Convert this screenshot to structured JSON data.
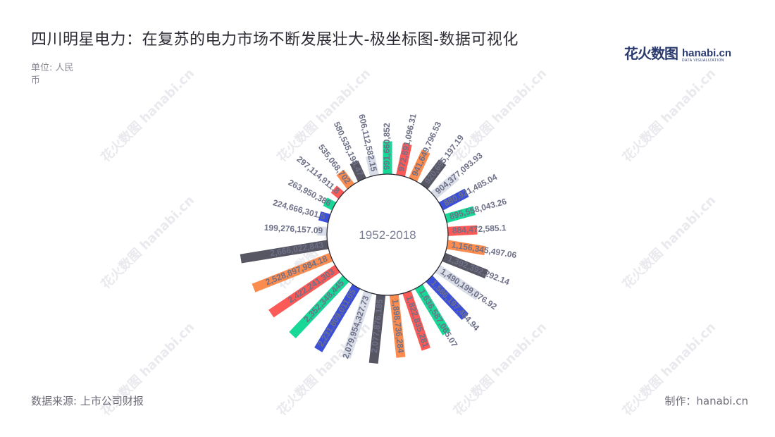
{
  "title": "四川明星电力：在复苏的电力市场不断发展壮大-极坐标图-数据可视化",
  "unit_label": "单位: 人民币",
  "logo": {
    "cn": "花火数图",
    "en": "hanabi.cn",
    "en_sub": "DATA VISUALIZATION"
  },
  "source": "数据来源: 上市公司财报",
  "credit": "制作：hanabi.cn",
  "watermark": "花火数图 hanabi.cn",
  "chart_data": {
    "type": "bar",
    "polar": true,
    "center_label": "1952-2018",
    "values": [
      991660852,
      972891096.31,
      941649796.53,
      920695197.19,
      904377093.93,
      880921485.04,
      895558043.26,
      884472585.1,
      1156345497.06,
      1392392292.14,
      1490199076.92,
      1586197484.94,
      1636587065.07,
      1822835281,
      1898736284,
      2077876185,
      2079954327.73,
      2231809011.05,
      2352348445,
      2422241303,
      2528897984.18,
      2666022843,
      199276157.09,
      224666301.5,
      263950386,
      297114911.8,
      535068702,
      580535198.47,
      606112582.15
    ],
    "labels": [
      "991,660,852",
      "972,891,096.31",
      "941,649,796.53",
      "920,695,197.19",
      "904,377,093.93",
      "880,921,485.04",
      "895,558,043.26",
      "884,472,585.1",
      "1,156,345,497.06",
      "1,392,392,292.14",
      "1,490,199,076.92",
      "1,586,197,484.94",
      "1,636,587,065.07",
      "1,822,835,281",
      "1,898,736,284",
      "2,077,876,185",
      "2,079,954,327.73",
      "2,231,809,011.05",
      "2,352,348,445",
      "2,422,241,303",
      "2,528,897,984.18",
      "2,666,022,843",
      "199,276,157.09",
      "224,666,301.5",
      "263,950,386",
      "297,114,911.8",
      "535,068,702",
      "580,535,198.47",
      "606,112,582.15"
    ],
    "colors": [
      "#17d896",
      "#fb5a57",
      "#fb8c50",
      "#575663",
      "#d8dde8",
      "#3b4fd8"
    ]
  }
}
